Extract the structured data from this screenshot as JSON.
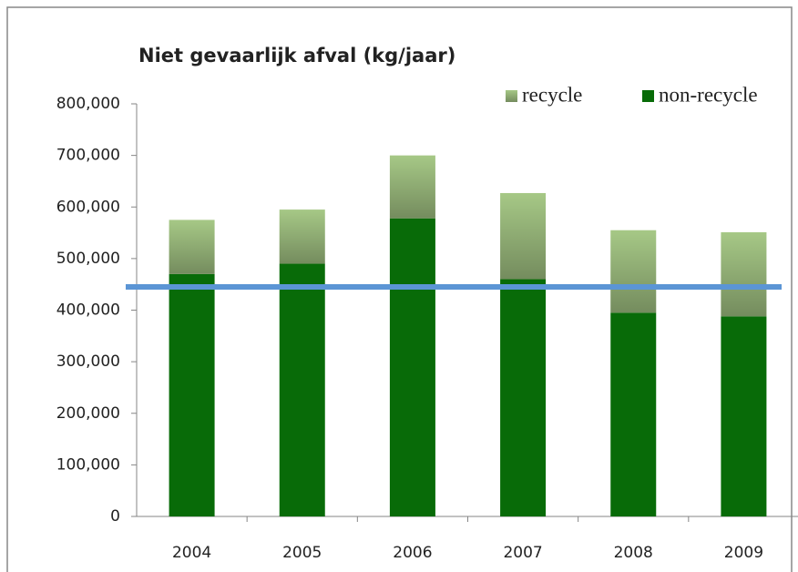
{
  "chart_data": {
    "type": "stacked_bar",
    "title": "Niet gevaarlijk afval (kg/jaar)",
    "categories": [
      "2004",
      "2005",
      "2006",
      "2007",
      "2008",
      "2009"
    ],
    "series": [
      {
        "name": "recycle",
        "color": "#a6c886",
        "values": [
          105000,
          105000,
          122000,
          167000,
          160000,
          163000
        ]
      },
      {
        "name": "non-recycle",
        "color": "#086b08",
        "values": [
          470000,
          490000,
          578000,
          460000,
          395000,
          388000
        ]
      }
    ],
    "ylim": [
      0,
      800000
    ],
    "yticks": [
      0,
      {
        "value": 100000,
        "label": "100,000"
      },
      {
        "value": 200000,
        "label": "200,000"
      },
      {
        "value": 300000,
        "label": "300,000"
      },
      {
        "value": 400000,
        "label": "400,000"
      },
      {
        "value": 500000,
        "label": "500,000"
      },
      {
        "value": 600000,
        "label": "600,000"
      },
      {
        "value": 700000,
        "label": "700,000"
      },
      {
        "value": 800000,
        "label": "800,000"
      }
    ],
    "grid": false,
    "legend": "top-right",
    "reference_line": {
      "value": 445000,
      "color": "#5b95d5"
    }
  }
}
